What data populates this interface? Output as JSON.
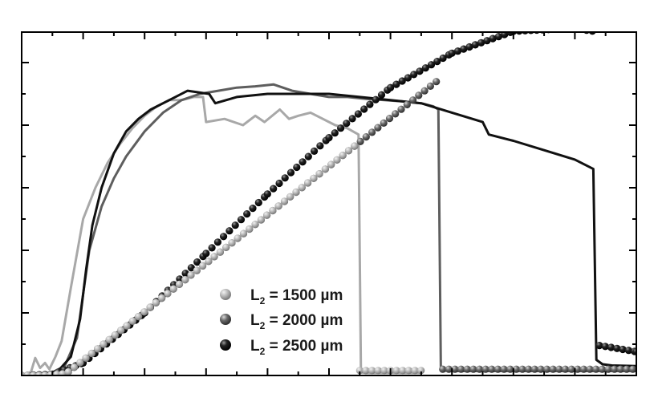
{
  "chart_data": {
    "type": "line",
    "title": "",
    "xlabel": "",
    "ylabel": "",
    "xlim": [
      0,
      10
    ],
    "ylim": [
      0,
      5.5
    ],
    "x_ticks": [
      0,
      1,
      2,
      3,
      4,
      5,
      6,
      7,
      8,
      9,
      10
    ],
    "y_ticks": [
      0,
      1,
      2,
      3,
      4,
      5
    ],
    "x_tick_labels_visible": "partially clipped at bottom edge",
    "y_tick_labels_visible": "none",
    "grid": false,
    "legend": {
      "position": "lower center",
      "entries": [
        {
          "label": "L₂ = 1500 µm",
          "main": "L",
          "sub": "2",
          "rest": " = 1500 µm",
          "color": "#a8a8a8"
        },
        {
          "label": "L₂ = 2000 µm",
          "main": "L",
          "sub": "2",
          "rest": " = 2000 µm",
          "color": "#5e5e5e"
        },
        {
          "label": "L₂ = 2500 µm",
          "main": "L",
          "sub": "2",
          "rest": " = 2500 µm",
          "color": "#111111"
        }
      ]
    },
    "series": [
      {
        "name": "L2 = 1500 µm (line)",
        "style": "line",
        "color": "#a8a8a8",
        "x": [
          0,
          0.15,
          0.22,
          0.3,
          0.38,
          0.45,
          0.55,
          0.65,
          0.8,
          1.0,
          1.2,
          1.4,
          1.6,
          1.8,
          2.0,
          2.2,
          2.4,
          2.6,
          2.8,
          2.95,
          3.0,
          3.3,
          3.6,
          3.8,
          3.95,
          4.2,
          4.35,
          4.5,
          4.7,
          4.9,
          5.1,
          5.3,
          5.48,
          5.52,
          5.6,
          5.8,
          6.5
        ],
        "y": [
          0,
          0.05,
          0.28,
          0.12,
          0.2,
          0.1,
          0.3,
          0.55,
          1.4,
          2.5,
          3.0,
          3.4,
          3.7,
          3.95,
          4.15,
          4.3,
          4.4,
          4.4,
          4.45,
          4.45,
          4.05,
          4.1,
          4.0,
          4.15,
          4.05,
          4.25,
          4.1,
          4.15,
          4.2,
          4.1,
          4.0,
          3.95,
          3.85,
          0.05,
          0.04,
          0.04,
          0.04
        ]
      },
      {
        "name": "L2 = 2000 µm (line)",
        "style": "line",
        "color": "#5e5e5e",
        "x": [
          0,
          0.3,
          0.5,
          0.7,
          0.9,
          1.0,
          1.1,
          1.3,
          1.5,
          1.7,
          2.0,
          2.3,
          2.6,
          2.9,
          3.2,
          3.5,
          3.8,
          4.1,
          4.4,
          4.7,
          5.0,
          5.3,
          5.6,
          5.9,
          6.2,
          6.5,
          6.7,
          6.78,
          6.82,
          7.0,
          10.0
        ],
        "y": [
          0,
          0.02,
          0.05,
          0.15,
          0.6,
          1.3,
          2.0,
          2.7,
          3.15,
          3.5,
          3.9,
          4.2,
          4.4,
          4.5,
          4.55,
          4.6,
          4.62,
          4.65,
          4.55,
          4.5,
          4.45,
          4.45,
          4.42,
          4.4,
          4.38,
          4.35,
          4.3,
          4.25,
          0.08,
          0.07,
          0.07
        ]
      },
      {
        "name": "L2 = 2500 µm (line)",
        "style": "line",
        "color": "#111111",
        "x": [
          0,
          0.2,
          0.4,
          0.6,
          0.8,
          0.95,
          1.05,
          1.15,
          1.3,
          1.5,
          1.7,
          1.9,
          2.1,
          2.3,
          2.5,
          2.7,
          2.9,
          3.05,
          3.15,
          3.5,
          4.0,
          4.5,
          5.0,
          5.5,
          6.0,
          6.5,
          7.0,
          7.5,
          7.6,
          8.0,
          8.5,
          9.0,
          9.3,
          9.35,
          9.45,
          9.6,
          10.0
        ],
        "y": [
          0,
          0.0,
          0.02,
          0.08,
          0.3,
          0.9,
          1.7,
          2.4,
          3.0,
          3.55,
          3.9,
          4.1,
          4.25,
          4.35,
          4.45,
          4.55,
          4.52,
          4.5,
          4.35,
          4.45,
          4.5,
          4.5,
          4.5,
          4.45,
          4.4,
          4.35,
          4.2,
          4.05,
          3.85,
          3.75,
          3.6,
          3.45,
          3.3,
          0.25,
          0.18,
          0.16,
          0.15
        ]
      },
      {
        "name": "L2 = 1500 µm (markers)",
        "style": "markers",
        "color": "#a8a8a8",
        "x_start": 0.0,
        "x_end": 5.48,
        "slope_per_unit": 0.775,
        "drop_x": 5.5,
        "drop_y": 0.08,
        "tail_x_end": 6.5
      },
      {
        "name": "L2 = 2000 µm (markers)",
        "style": "markers",
        "color": "#5e5e5e",
        "x_start": 0.0,
        "x_end": 6.78,
        "slope_per_unit": 0.775,
        "drop_x": 6.85,
        "drop_y": 0.1,
        "tail_x_end": 10.0
      },
      {
        "name": "L2 = 2500 µm (markers)",
        "style": "markers",
        "color": "#111111",
        "x": [
          0.0,
          0.5,
          1.0,
          2.0,
          3.0,
          4.0,
          5.0,
          6.0,
          7.0,
          8.0,
          9.0,
          9.3,
          9.4,
          10.0
        ],
        "y": [
          0.0,
          0.02,
          0.2,
          1.0,
          1.95,
          2.9,
          3.8,
          4.6,
          5.15,
          5.5,
          5.55,
          5.5,
          0.48,
          0.38
        ]
      }
    ]
  }
}
